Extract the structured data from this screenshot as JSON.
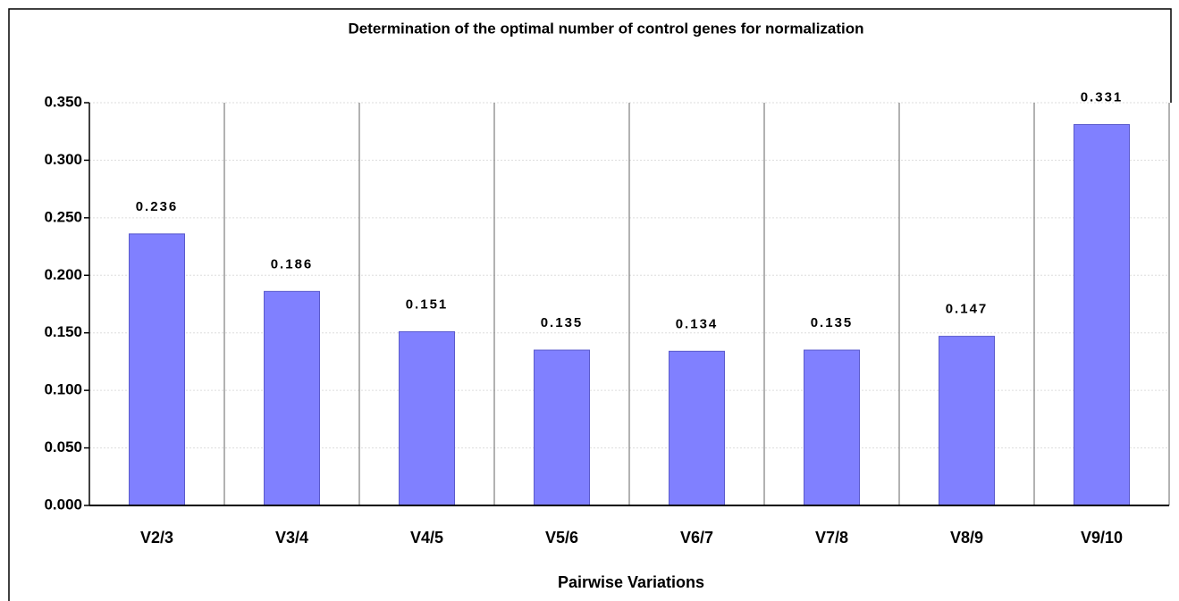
{
  "chart_data": {
    "type": "bar",
    "title": "Determination of the optimal number of control genes for normalization",
    "x_label": "Pairwise Variations",
    "categories": [
      "V2/3",
      "V3/4",
      "V4/5",
      "V5/6",
      "V6/7",
      "V7/8",
      "V8/9",
      "V9/10"
    ],
    "values": [
      0.236,
      0.186,
      0.151,
      0.135,
      0.134,
      0.135,
      0.147,
      0.331
    ],
    "color": "#8080ff",
    "ylim": [
      0,
      0.35
    ],
    "yticks": [
      {
        "value": 0,
        "label": "0.000"
      },
      {
        "value": 0.05,
        "label": "0.050"
      },
      {
        "value": 0.1,
        "label": "0.100"
      },
      {
        "value": 0.15,
        "label": "0.150"
      },
      {
        "value": 0.2,
        "label": "0.200"
      },
      {
        "value": 0.25,
        "label": "0.250"
      },
      {
        "value": 0.3,
        "label": "0.300"
      },
      {
        "value": 0.35,
        "label": "0.350"
      }
    ],
    "grid": true
  }
}
